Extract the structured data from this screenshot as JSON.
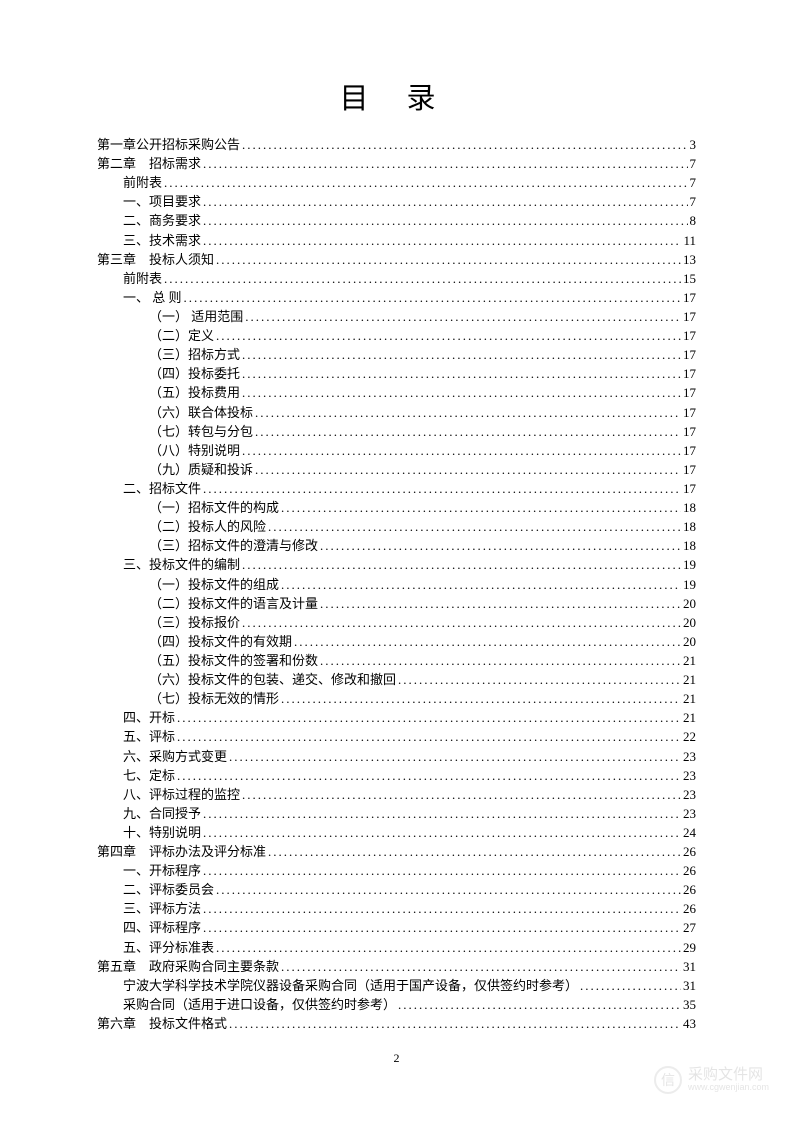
{
  "title": "目录",
  "page_number": "2",
  "watermark": {
    "main": "采购文件网",
    "sub": "www.cgwenjian.com",
    "icon": "信"
  },
  "entries": [
    {
      "label": "第一章公开招标采购公告",
      "page": "3",
      "indent": 0
    },
    {
      "label": "第二章　招标需求",
      "page": "7",
      "indent": 0
    },
    {
      "label": "前附表",
      "page": "7",
      "indent": 1
    },
    {
      "label": "一、项目要求",
      "page": "7",
      "indent": 1
    },
    {
      "label": "二、商务要求",
      "page": "8",
      "indent": 1
    },
    {
      "label": "三、技术需求",
      "page": "11",
      "indent": 1
    },
    {
      "label": "第三章　投标人须知",
      "page": "13",
      "indent": 0
    },
    {
      "label": "前附表",
      "page": "15",
      "indent": 1
    },
    {
      "label": "一、 总  则",
      "page": "17",
      "indent": 1
    },
    {
      "label": "（一） 适用范围",
      "page": "17",
      "indent": 2
    },
    {
      "label": "（二）定义",
      "page": "17",
      "indent": 2
    },
    {
      "label": "（三）招标方式",
      "page": "17",
      "indent": 2
    },
    {
      "label": "（四）投标委托",
      "page": "17",
      "indent": 2
    },
    {
      "label": "（五）投标费用",
      "page": "17",
      "indent": 2
    },
    {
      "label": "（六）联合体投标",
      "page": "17",
      "indent": 2
    },
    {
      "label": "（七）转包与分包",
      "page": "17",
      "indent": 2
    },
    {
      "label": "（八）特别说明",
      "page": "17",
      "indent": 2
    },
    {
      "label": "（九）质疑和投诉",
      "page": "17",
      "indent": 2
    },
    {
      "label": "二、招标文件",
      "page": "17",
      "indent": 1
    },
    {
      "label": "（一）招标文件的构成",
      "page": "18",
      "indent": 2
    },
    {
      "label": "（二）投标人的风险",
      "page": "18",
      "indent": 2
    },
    {
      "label": "（三）招标文件的澄清与修改",
      "page": "18",
      "indent": 2
    },
    {
      "label": "三、投标文件的编制",
      "page": "19",
      "indent": 1
    },
    {
      "label": "（一）投标文件的组成",
      "page": "19",
      "indent": 2
    },
    {
      "label": "（二）投标文件的语言及计量",
      "page": "20",
      "indent": 2
    },
    {
      "label": "（三）投标报价",
      "page": "20",
      "indent": 2
    },
    {
      "label": "（四）投标文件的有效期",
      "page": "20",
      "indent": 2
    },
    {
      "label": "（五）投标文件的签署和份数",
      "page": "21",
      "indent": 2
    },
    {
      "label": "（六）投标文件的包装、递交、修改和撤回",
      "page": "21",
      "indent": 2
    },
    {
      "label": "（七）投标无效的情形",
      "page": "21",
      "indent": 2
    },
    {
      "label": "四、开标",
      "page": "21",
      "indent": 1
    },
    {
      "label": "五、评标",
      "page": "22",
      "indent": 1
    },
    {
      "label": "六、采购方式变更",
      "page": "23",
      "indent": 1
    },
    {
      "label": "七、定标",
      "page": "23",
      "indent": 1
    },
    {
      "label": "八、评标过程的监控",
      "page": "23",
      "indent": 1
    },
    {
      "label": "九、合同授予",
      "page": "23",
      "indent": 1
    },
    {
      "label": "十、特别说明",
      "page": "24",
      "indent": 1
    },
    {
      "label": "第四章　评标办法及评分标准",
      "page": "26",
      "indent": 0
    },
    {
      "label": "一、开标程序",
      "page": "26",
      "indent": 1
    },
    {
      "label": "二、评标委员会",
      "page": "26",
      "indent": 1
    },
    {
      "label": "三、评标方法",
      "page": "26",
      "indent": 1
    },
    {
      "label": "四、评标程序",
      "page": "27",
      "indent": 1
    },
    {
      "label": "五、评分标准表",
      "page": "29",
      "indent": 1
    },
    {
      "label": "第五章　政府采购合同主要条款",
      "page": "31",
      "indent": 0
    },
    {
      "label": "宁波大学科学技术学院仪器设备采购合同（适用于国产设备，仅供签约时参考）",
      "page": "31",
      "indent": 1
    },
    {
      "label": "采购合同（适用于进口设备，仅供签约时参考）",
      "page": "35",
      "indent": 1
    },
    {
      "label": "第六章　投标文件格式",
      "page": "43",
      "indent": 0
    }
  ]
}
